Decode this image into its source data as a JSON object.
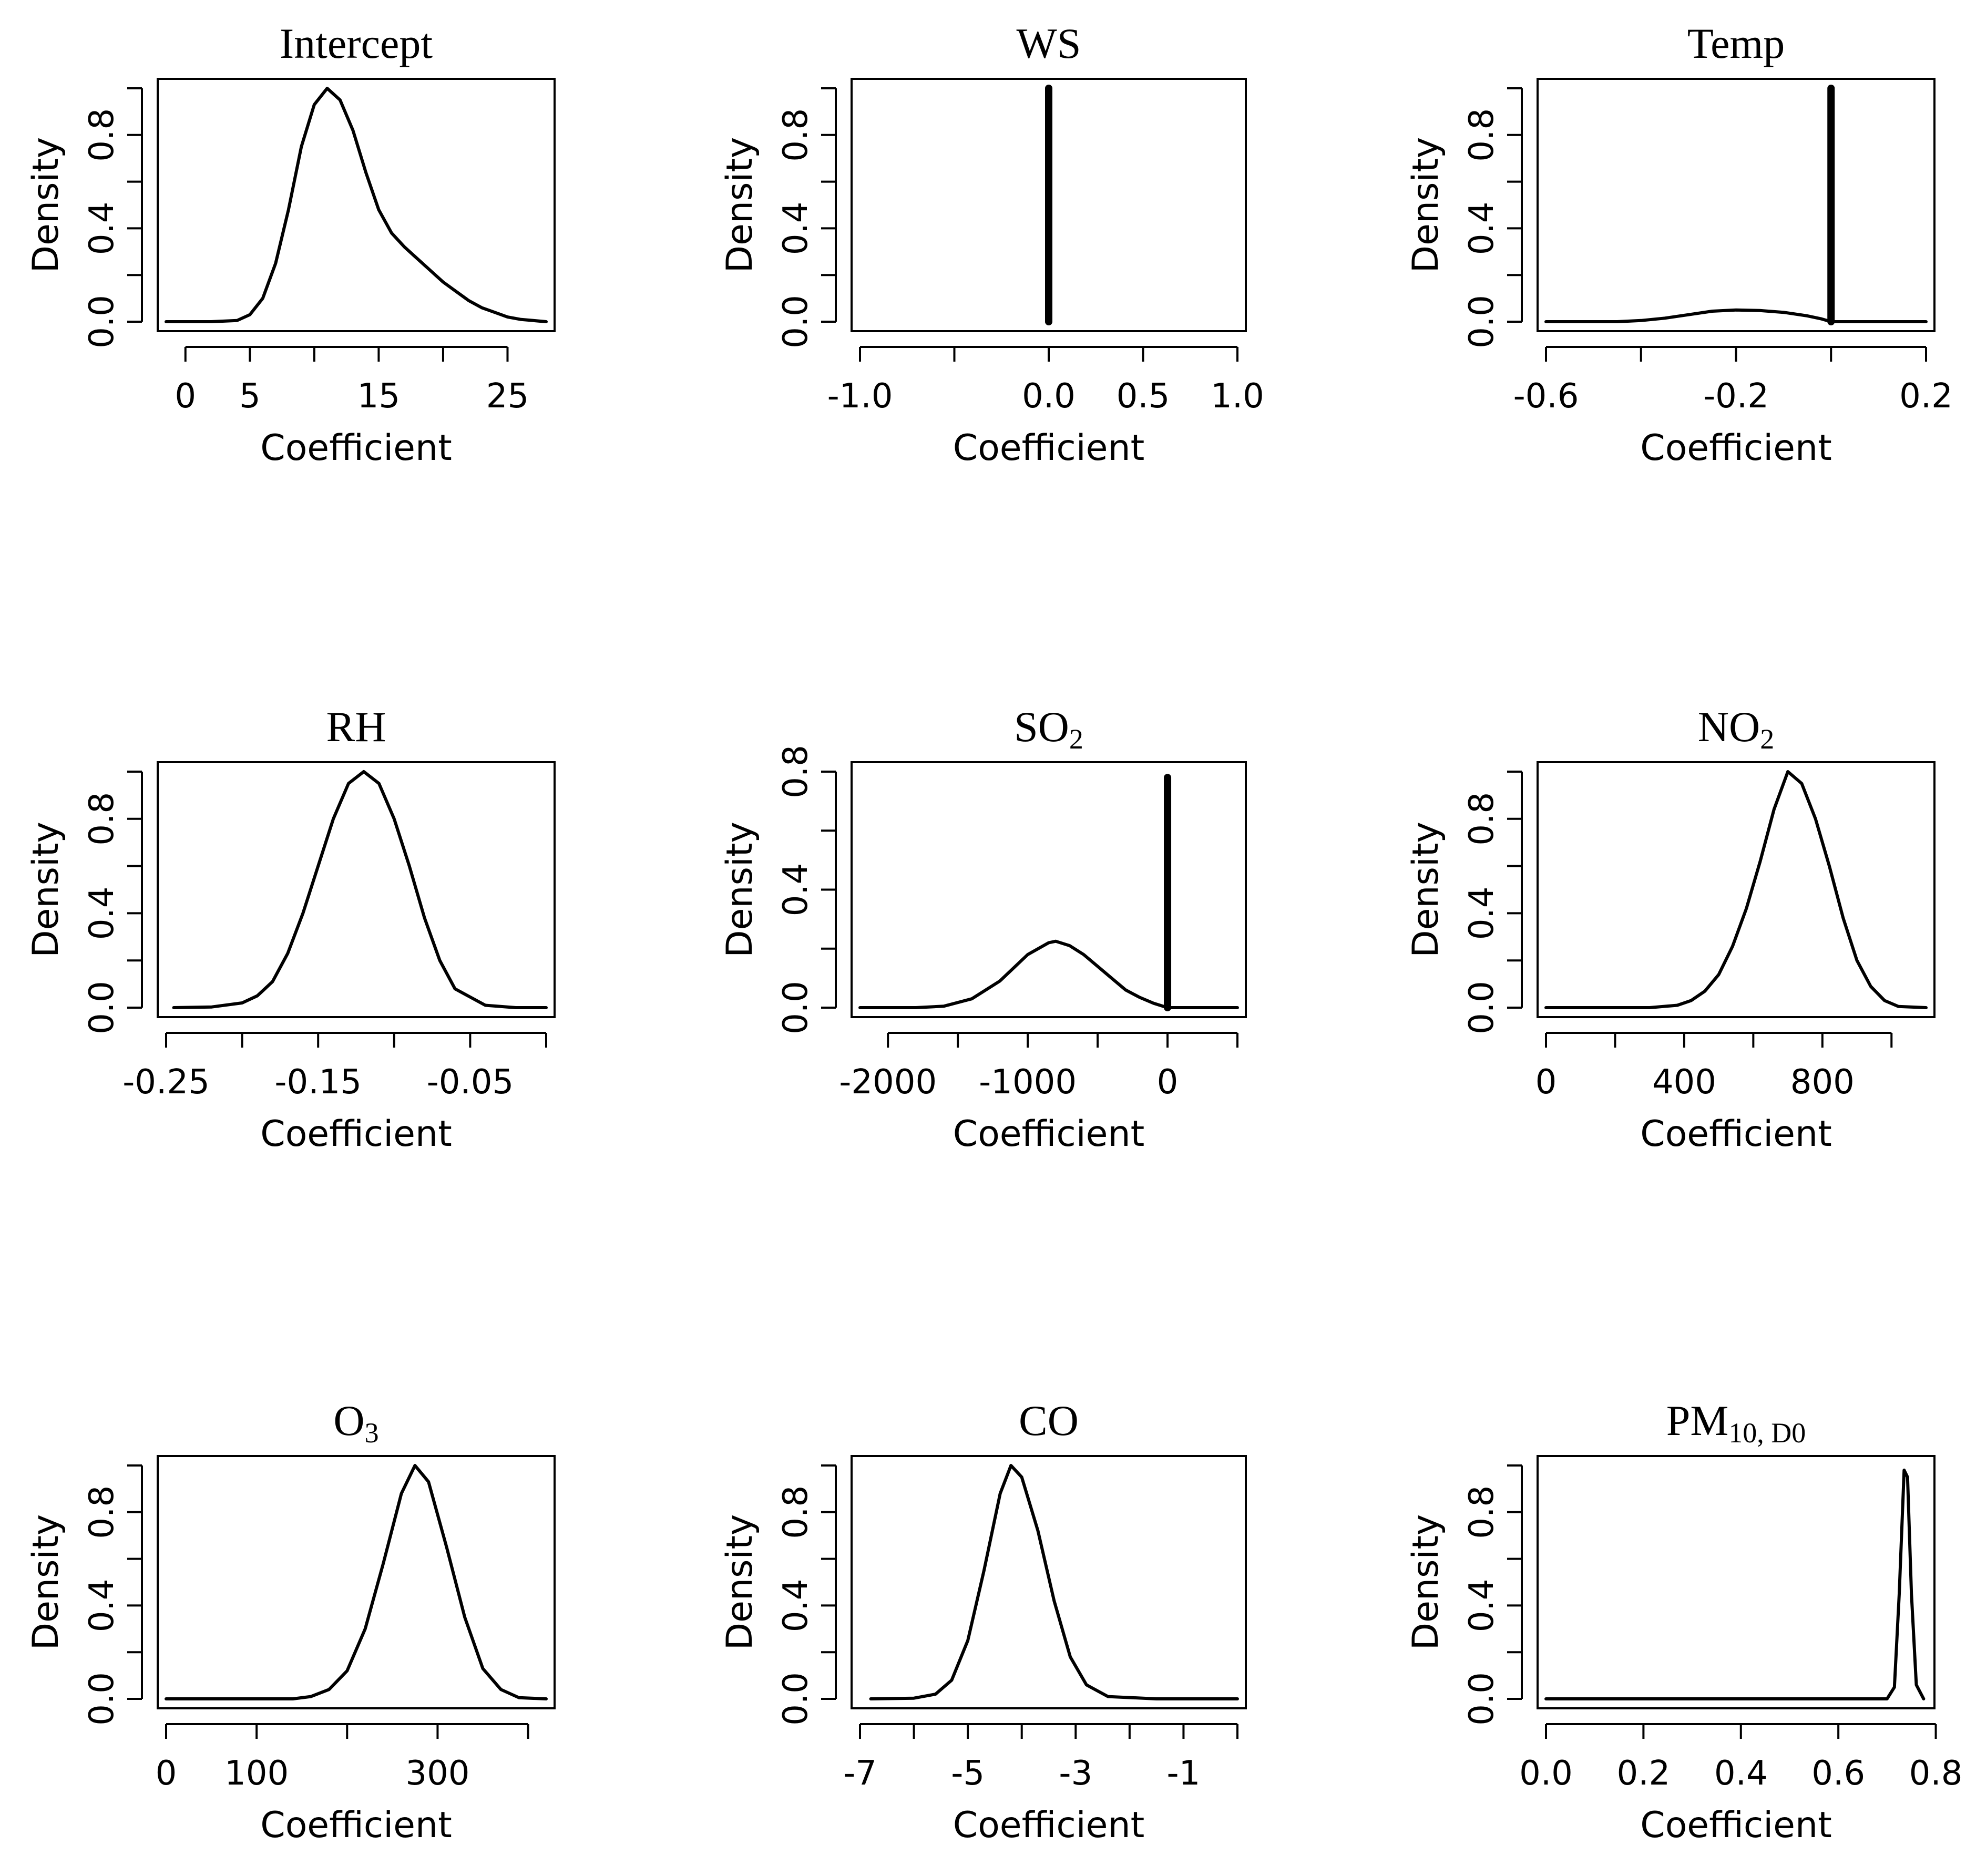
{
  "chart_data": [
    {
      "type": "line",
      "title": "Intercept",
      "title_sub": "",
      "xlabel": "Coefficient",
      "ylabel": "Density",
      "xlim": [
        -1.5,
        28
      ],
      "ylim": [
        0,
        1.0
      ],
      "xticks": [
        0,
        5,
        10,
        15,
        20,
        25
      ],
      "xtick_labels": [
        "0",
        "5",
        "",
        "15",
        "",
        "25"
      ],
      "yticks": [
        0,
        0.2,
        0.4,
        0.6,
        0.8,
        1.0
      ],
      "ytick_labels": [
        "0.0",
        "",
        "0.4",
        "",
        "0.8",
        ""
      ],
      "series": [
        {
          "name": "density",
          "x": [
            -1.5,
            2,
            4,
            5,
            6,
            7,
            8,
            9,
            10,
            11,
            12,
            13,
            14,
            15,
            16,
            17,
            18,
            19,
            20,
            21,
            22,
            23,
            24,
            25,
            26,
            27,
            28
          ],
          "y": [
            0,
            0,
            0.005,
            0.03,
            0.1,
            0.25,
            0.48,
            0.75,
            0.93,
            1.0,
            0.95,
            0.82,
            0.64,
            0.48,
            0.38,
            0.32,
            0.27,
            0.22,
            0.17,
            0.13,
            0.09,
            0.06,
            0.04,
            0.02,
            0.01,
            0.005,
            0
          ]
        }
      ],
      "spikes": []
    },
    {
      "type": "line",
      "title": "WS",
      "title_sub": "",
      "xlabel": "Coefficient",
      "ylabel": "Density",
      "xlim": [
        -1.0,
        1.0
      ],
      "ylim": [
        0,
        1.0
      ],
      "xticks": [
        -1.0,
        -0.5,
        0.0,
        0.5,
        1.0
      ],
      "xtick_labels": [
        "-1.0",
        "",
        "0.0",
        "0.5",
        "1.0"
      ],
      "yticks": [
        0,
        0.2,
        0.4,
        0.6,
        0.8,
        1.0
      ],
      "ytick_labels": [
        "0.0",
        "",
        "0.4",
        "",
        "0.8",
        ""
      ],
      "series": [],
      "spikes": [
        {
          "x": 0.0,
          "y": 1.0
        }
      ]
    },
    {
      "type": "line",
      "title": "Temp",
      "title_sub": "",
      "xlabel": "Coefficient",
      "ylabel": "Density",
      "xlim": [
        -0.6,
        0.2
      ],
      "ylim": [
        0,
        1.0
      ],
      "xticks": [
        -0.6,
        -0.4,
        -0.2,
        0.0,
        0.2
      ],
      "xtick_labels": [
        "-0.6",
        "",
        "-0.2",
        "",
        "0.2"
      ],
      "yticks": [
        0,
        0.2,
        0.4,
        0.6,
        0.8,
        1.0
      ],
      "ytick_labels": [
        "0.0",
        "",
        "0.4",
        "",
        "0.8",
        ""
      ],
      "series": [
        {
          "name": "density",
          "x": [
            -0.6,
            -0.45,
            -0.4,
            -0.35,
            -0.3,
            -0.25,
            -0.2,
            -0.15,
            -0.1,
            -0.05,
            -0.02,
            0.0,
            0.1,
            0.2
          ],
          "y": [
            0,
            0,
            0.005,
            0.015,
            0.03,
            0.045,
            0.05,
            0.048,
            0.04,
            0.025,
            0.012,
            0,
            0,
            0
          ]
        }
      ],
      "spikes": [
        {
          "x": 0.0,
          "y": 1.0
        }
      ]
    },
    {
      "type": "line",
      "title": "RH",
      "title_sub": "",
      "xlabel": "Coefficient",
      "ylabel": "Density",
      "xlim": [
        -0.25,
        0.0
      ],
      "ylim": [
        0,
        1.0
      ],
      "xticks": [
        -0.25,
        -0.2,
        -0.15,
        -0.1,
        -0.05,
        0.0
      ],
      "xtick_labels": [
        "-0.25",
        "",
        "-0.15",
        "",
        "-0.05",
        ""
      ],
      "yticks": [
        0,
        0.2,
        0.4,
        0.6,
        0.8,
        1.0
      ],
      "ytick_labels": [
        "0.0",
        "",
        "0.4",
        "",
        "0.8",
        ""
      ],
      "series": [
        {
          "name": "density",
          "x": [
            -0.245,
            -0.22,
            -0.2,
            -0.19,
            -0.18,
            -0.17,
            -0.16,
            -0.15,
            -0.14,
            -0.13,
            -0.12,
            -0.11,
            -0.1,
            -0.09,
            -0.08,
            -0.07,
            -0.06,
            -0.04,
            -0.02,
            0.0
          ],
          "y": [
            0,
            0.003,
            0.02,
            0.05,
            0.11,
            0.23,
            0.4,
            0.6,
            0.8,
            0.95,
            1.0,
            0.95,
            0.8,
            0.6,
            0.38,
            0.2,
            0.08,
            0.01,
            0,
            0
          ]
        }
      ],
      "spikes": []
    },
    {
      "type": "line",
      "title": "SO",
      "title_sub": "2",
      "xlabel": "Coefficient",
      "ylabel": "Density",
      "xlim": [
        -2200,
        500
      ],
      "ylim": [
        0,
        0.8
      ],
      "xticks": [
        -2000,
        -1500,
        -1000,
        -500,
        0,
        500
      ],
      "xtick_labels": [
        "-2000",
        "",
        "-1000",
        "",
        "0",
        ""
      ],
      "yticks": [
        0,
        0.2,
        0.4,
        0.6,
        0.8
      ],
      "ytick_labels": [
        "0.0",
        "",
        "0.4",
        "",
        "0.8"
      ],
      "series": [
        {
          "name": "density",
          "x": [
            -2200,
            -1800,
            -1600,
            -1400,
            -1200,
            -1000,
            -850,
            -800,
            -700,
            -600,
            -500,
            -400,
            -300,
            -200,
            -100,
            0,
            200,
            500
          ],
          "y": [
            0,
            0,
            0.005,
            0.03,
            0.09,
            0.18,
            0.22,
            0.225,
            0.21,
            0.18,
            0.14,
            0.1,
            0.06,
            0.035,
            0.015,
            0,
            0,
            0
          ]
        }
      ],
      "spikes": [
        {
          "x": 0,
          "y": 0.78
        }
      ]
    },
    {
      "type": "line",
      "title": "NO",
      "title_sub": "2",
      "xlabel": "Coefficient",
      "ylabel": "Density",
      "xlim": [
        0,
        1100
      ],
      "ylim": [
        0,
        1.0
      ],
      "xticks": [
        0,
        200,
        400,
        600,
        800,
        1000
      ],
      "xtick_labels": [
        "0",
        "",
        "400",
        "",
        "800",
        ""
      ],
      "yticks": [
        0,
        0.2,
        0.4,
        0.6,
        0.8,
        1.0
      ],
      "ytick_labels": [
        "0.0",
        "",
        "0.4",
        "",
        "0.8",
        ""
      ],
      "series": [
        {
          "name": "density",
          "x": [
            0,
            300,
            380,
            420,
            460,
            500,
            540,
            580,
            620,
            660,
            700,
            740,
            780,
            820,
            860,
            900,
            940,
            980,
            1020,
            1100
          ],
          "y": [
            0,
            0,
            0.01,
            0.03,
            0.07,
            0.14,
            0.26,
            0.42,
            0.62,
            0.84,
            1.0,
            0.95,
            0.8,
            0.6,
            0.38,
            0.2,
            0.09,
            0.03,
            0.005,
            0
          ]
        }
      ],
      "spikes": []
    },
    {
      "type": "line",
      "title": "O",
      "title_sub": "3",
      "xlabel": "Coefficient",
      "ylabel": "Density",
      "xlim": [
        0,
        420
      ],
      "ylim": [
        0,
        1.0
      ],
      "xticks": [
        0,
        100,
        200,
        300,
        400
      ],
      "xtick_labels": [
        "0",
        "100",
        "",
        "300",
        ""
      ],
      "yticks": [
        0,
        0.2,
        0.4,
        0.6,
        0.8,
        1.0
      ],
      "ytick_labels": [
        "0.0",
        "",
        "0.4",
        "",
        "0.8",
        ""
      ],
      "series": [
        {
          "name": "density",
          "x": [
            0,
            140,
            160,
            180,
            200,
            220,
            240,
            260,
            275,
            290,
            310,
            330,
            350,
            370,
            390,
            420
          ],
          "y": [
            0,
            0,
            0.01,
            0.04,
            0.12,
            0.3,
            0.58,
            0.88,
            1.0,
            0.93,
            0.65,
            0.35,
            0.13,
            0.04,
            0.005,
            0
          ]
        }
      ],
      "spikes": []
    },
    {
      "type": "line",
      "title": "CO",
      "title_sub": "",
      "xlabel": "Coefficient",
      "ylabel": "Density",
      "xlim": [
        -7,
        0
      ],
      "ylim": [
        0,
        1.0
      ],
      "xticks": [
        -7,
        -6,
        -5,
        -4,
        -3,
        -2,
        -1,
        0
      ],
      "xtick_labels": [
        "-7",
        "",
        "-5",
        "",
        "-3",
        "",
        "-1",
        ""
      ],
      "yticks": [
        0,
        0.2,
        0.4,
        0.6,
        0.8,
        1.0
      ],
      "ytick_labels": [
        "0.0",
        "",
        "0.4",
        "",
        "0.8",
        ""
      ],
      "series": [
        {
          "name": "density",
          "x": [
            -6.8,
            -6.0,
            -5.6,
            -5.3,
            -5.0,
            -4.7,
            -4.4,
            -4.2,
            -4.0,
            -3.7,
            -3.4,
            -3.1,
            -2.8,
            -2.4,
            -1.5,
            0
          ],
          "y": [
            0,
            0.003,
            0.02,
            0.08,
            0.25,
            0.55,
            0.88,
            1.0,
            0.95,
            0.72,
            0.42,
            0.18,
            0.06,
            0.01,
            0,
            0
          ]
        }
      ],
      "spikes": []
    },
    {
      "type": "line",
      "title": "PM",
      "title_sub": "10, D0",
      "xlabel": "Coefficient",
      "ylabel": "Density",
      "xlim": [
        0,
        0.78
      ],
      "ylim": [
        0,
        1.0
      ],
      "xticks": [
        0.0,
        0.2,
        0.4,
        0.6,
        0.8
      ],
      "xtick_labels": [
        "0.0",
        "0.2",
        "0.4",
        "0.6",
        "0.8"
      ],
      "yticks": [
        0,
        0.2,
        0.4,
        0.6,
        0.8,
        1.0
      ],
      "ytick_labels": [
        "0.0",
        "",
        "0.4",
        "",
        "0.8",
        ""
      ],
      "series": [
        {
          "name": "density",
          "x": [
            0,
            0.7,
            0.715,
            0.725,
            0.735,
            0.742,
            0.75,
            0.76,
            0.775
          ],
          "y": [
            0,
            0,
            0.05,
            0.45,
            0.98,
            0.95,
            0.45,
            0.06,
            0
          ]
        }
      ],
      "spikes": []
    }
  ]
}
